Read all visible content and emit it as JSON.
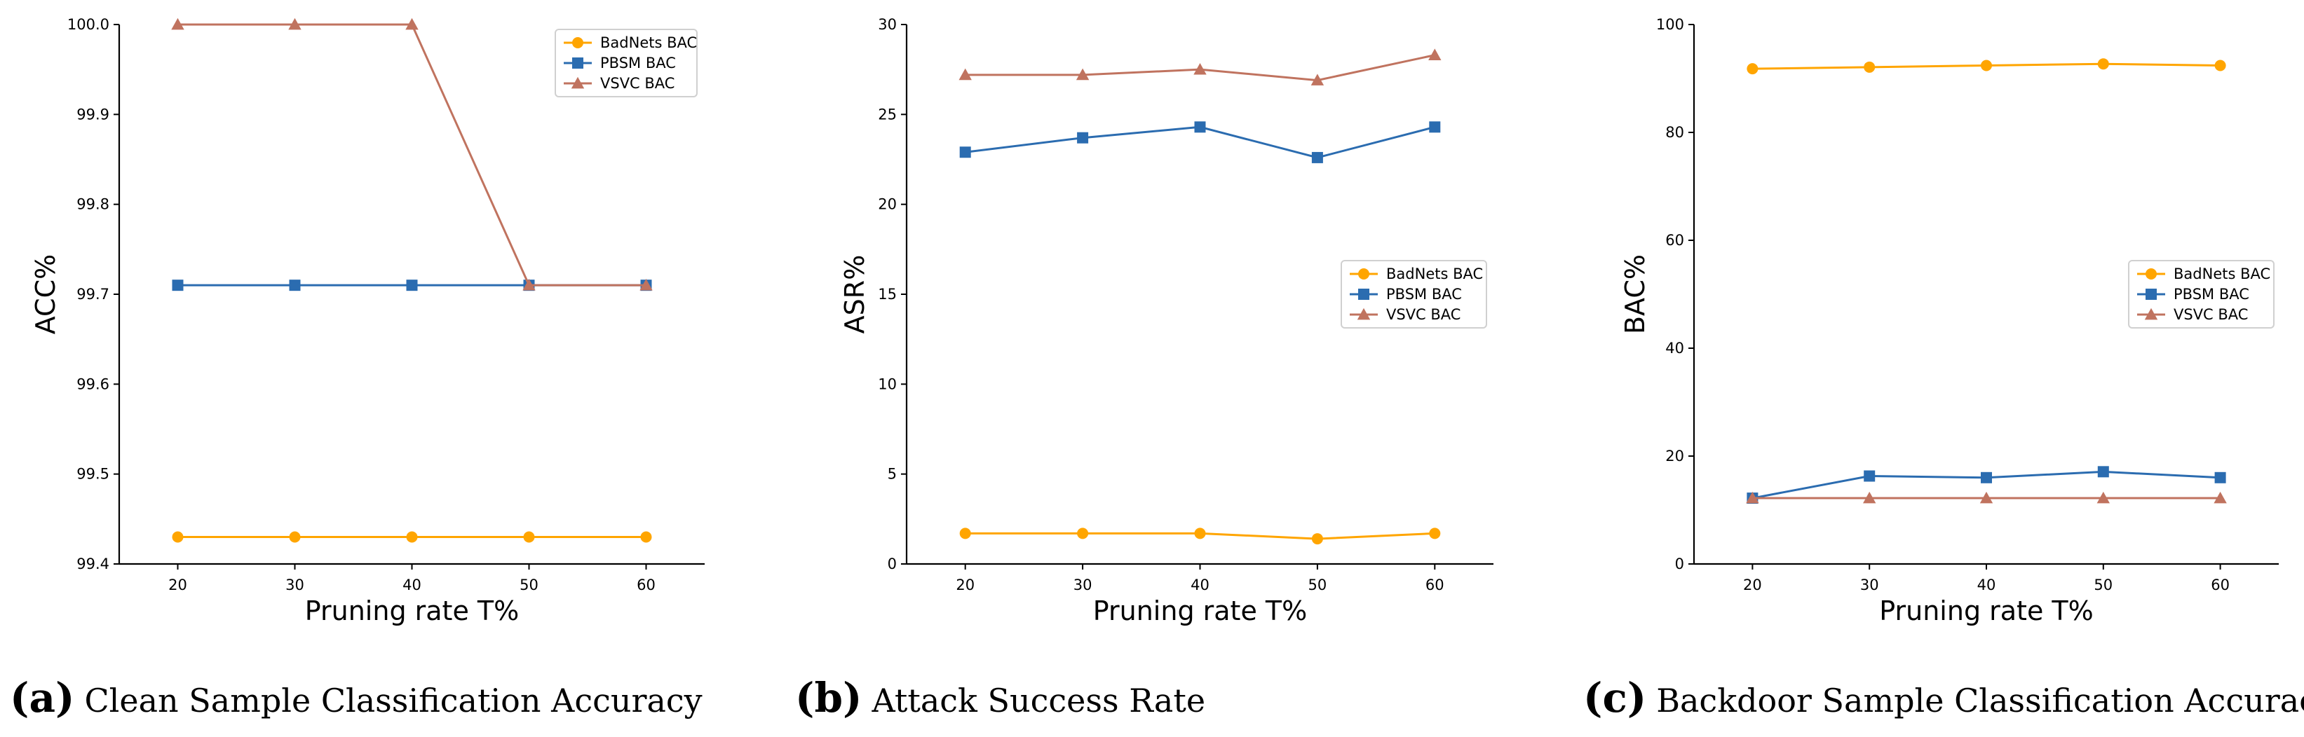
{
  "chart_data": [
    {
      "type": "line",
      "panel_label": "(a)",
      "caption": "Clean Sample Classification Accuracy",
      "xlabel": "Pruning rate T%",
      "ylabel": "ACC%",
      "x": [
        20,
        30,
        40,
        50,
        60
      ],
      "xticks": [
        "20",
        "30",
        "40",
        "50",
        "60"
      ],
      "xlim": [
        15,
        65
      ],
      "ylim": [
        99.4,
        100.0
      ],
      "yticks": [
        "99.4",
        "99.5",
        "99.6",
        "99.7",
        "99.8",
        "99.9",
        "100.0"
      ],
      "ytick_values": [
        99.4,
        99.5,
        99.6,
        99.7,
        99.8,
        99.9,
        100.0
      ],
      "legend": "top-right",
      "grid": false,
      "series": [
        {
          "name": "BadNets BAC",
          "color": "#ffa500",
          "marker": "circle",
          "values": [
            99.43,
            99.43,
            99.43,
            99.43,
            99.43
          ]
        },
        {
          "name": "PBSM BAC",
          "color": "#2b6cb0",
          "marker": "square",
          "values": [
            99.71,
            99.71,
            99.71,
            99.71,
            99.71
          ]
        },
        {
          "name": "VSVC BAC",
          "color": "#c0735f",
          "marker": "triangle",
          "values": [
            100.0,
            100.0,
            100.0,
            99.71,
            99.71
          ]
        }
      ]
    },
    {
      "type": "line",
      "panel_label": "(b)",
      "caption": "Attack Success Rate",
      "xlabel": "Pruning rate T%",
      "ylabel": "ASR%",
      "x": [
        20,
        30,
        40,
        50,
        60
      ],
      "xticks": [
        "20",
        "30",
        "40",
        "50",
        "60"
      ],
      "xlim": [
        15,
        65
      ],
      "ylim": [
        0,
        30
      ],
      "yticks": [
        "0",
        "5",
        "10",
        "15",
        "20",
        "25",
        "30"
      ],
      "ytick_values": [
        0,
        5,
        10,
        15,
        20,
        25,
        30
      ],
      "legend": "center-right",
      "grid": false,
      "series": [
        {
          "name": "BadNets BAC",
          "color": "#ffa500",
          "marker": "circle",
          "values": [
            1.7,
            1.7,
            1.7,
            1.4,
            1.7
          ]
        },
        {
          "name": "PBSM BAC",
          "color": "#2b6cb0",
          "marker": "square",
          "values": [
            22.9,
            23.7,
            24.3,
            22.6,
            24.3
          ]
        },
        {
          "name": "VSVC BAC",
          "color": "#c0735f",
          "marker": "triangle",
          "values": [
            27.2,
            27.2,
            27.5,
            26.9,
            28.3
          ]
        }
      ]
    },
    {
      "type": "line",
      "panel_label": "(c)",
      "caption": "Backdoor Sample Classification Accuracy",
      "xlabel": "Pruning rate T%",
      "ylabel": "BAC%",
      "x": [
        20,
        30,
        40,
        50,
        60
      ],
      "xticks": [
        "20",
        "30",
        "40",
        "50",
        "60"
      ],
      "xlim": [
        15,
        65
      ],
      "ylim": [
        0,
        100
      ],
      "yticks": [
        "0",
        "20",
        "40",
        "60",
        "80",
        "100"
      ],
      "ytick_values": [
        0,
        20,
        40,
        60,
        80,
        100
      ],
      "legend": "center-right",
      "grid": false,
      "series": [
        {
          "name": "BadNets BAC",
          "color": "#ffa500",
          "marker": "circle",
          "values": [
            91.8,
            92.1,
            92.4,
            92.7,
            92.4
          ]
        },
        {
          "name": "PBSM BAC",
          "color": "#2b6cb0",
          "marker": "square",
          "values": [
            12.2,
            16.3,
            16.0,
            17.1,
            16.0
          ]
        },
        {
          "name": "VSVC BAC",
          "color": "#c0735f",
          "marker": "triangle",
          "values": [
            12.2,
            12.2,
            12.2,
            12.2,
            12.2
          ]
        }
      ]
    }
  ]
}
